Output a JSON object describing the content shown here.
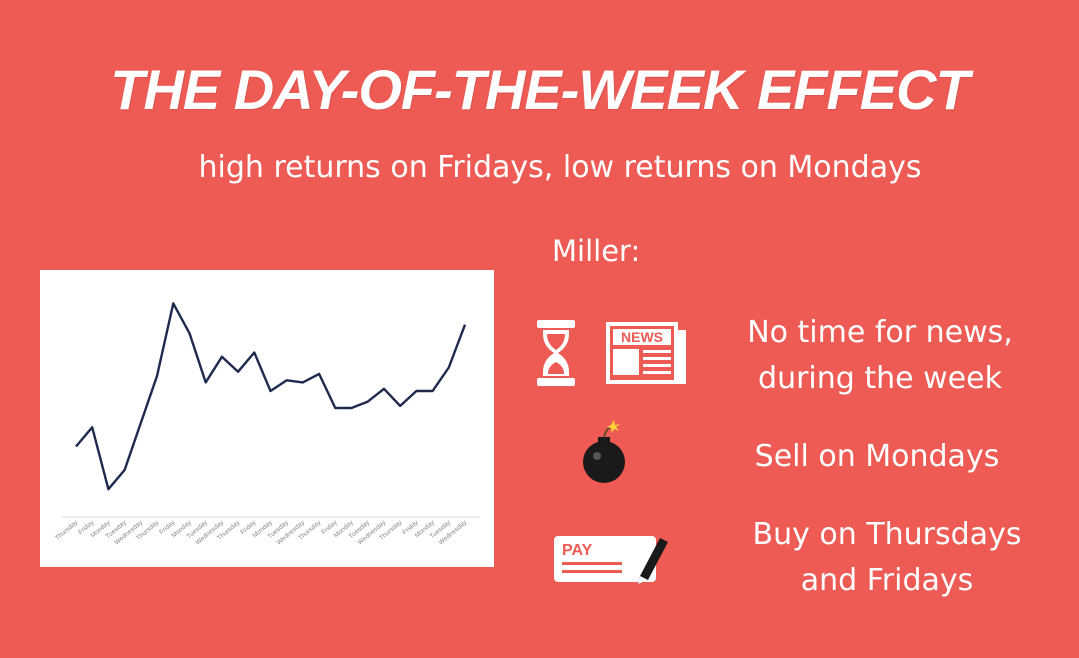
{
  "title": "THE DAY-OF-THE-WEEK EFFECT",
  "subtitle": "high returns on Fridays, low returns on Mondays",
  "miller_label": "Miller:",
  "items": [
    {
      "text_line1": "No time for news,",
      "text_line2": "during the week",
      "icons": [
        "hourglass-icon",
        "newspaper-icon"
      ],
      "icon_text": "NEWS"
    },
    {
      "text_line1": "Sell on Mondays",
      "icons": [
        "bomb-icon"
      ]
    },
    {
      "text_line1": "Buy on Thursdays",
      "text_line2": "and Fridays",
      "icons": [
        "pay-check-icon"
      ],
      "icon_text": "PAY"
    }
  ],
  "colors": {
    "background": "#ee5a54",
    "line": "#1e2a4e",
    "text": "#ffffff"
  },
  "chart_data": {
    "type": "line",
    "categories": [
      "Thursday",
      "Friday",
      "Monday",
      "Tuesday",
      "Wednesday",
      "Thursday",
      "Friday",
      "Monday",
      "Tuesday",
      "Wednesday",
      "Thursday",
      "Friday",
      "Monday",
      "Tuesday",
      "Wednesday",
      "Thursday",
      "Friday",
      "Monday",
      "Tuesday",
      "Wednesday",
      "Thursday",
      "Friday",
      "Monday",
      "Tuesday",
      "Wednesday"
    ],
    "values": [
      33,
      42,
      13,
      22,
      44,
      66,
      100,
      86,
      63,
      75,
      68,
      77,
      59,
      64,
      63,
      67,
      51,
      51,
      54,
      60,
      52,
      59,
      59,
      70,
      90
    ],
    "ylim": [
      0,
      110
    ],
    "grid": false
  }
}
